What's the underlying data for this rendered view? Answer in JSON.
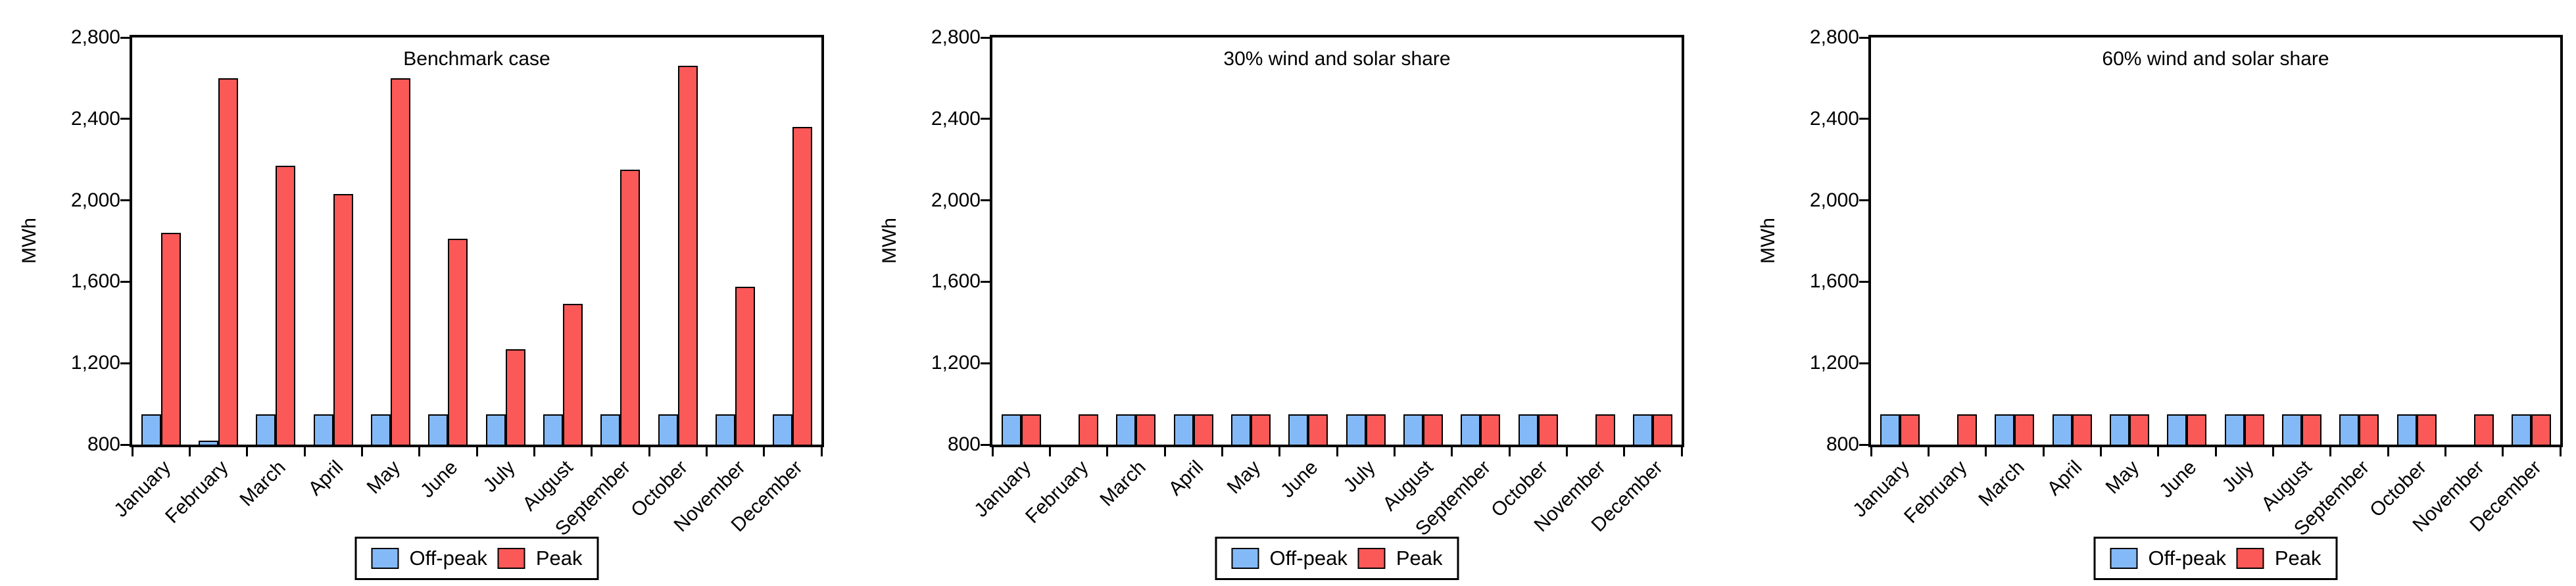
{
  "figure": {
    "ylabel": "MWh",
    "legend": {
      "off_peak_label": "Off-peak",
      "peak_label": "Peak"
    },
    "colors": {
      "off_peak": "#84B9F7",
      "peak": "#FB5858",
      "bar_outline": "#000000",
      "axis": "#000000",
      "background": "#FFFFFF"
    }
  },
  "chart_data": [
    {
      "type": "bar",
      "title": "Benchmark case",
      "ylabel": "MWh",
      "ylim": [
        800,
        2800
      ],
      "yticks": [
        800,
        1200,
        1600,
        2000,
        2400,
        2800
      ],
      "ytick_labels": [
        "800",
        "1,200",
        "1,600",
        "2,000",
        "2,400",
        "2,800"
      ],
      "grid": false,
      "legend_position": "bottom-center",
      "categories": [
        "January",
        "February",
        "March",
        "April",
        "May",
        "June",
        "July",
        "August",
        "September",
        "October",
        "November",
        "December"
      ],
      "series": [
        {
          "name": "Off-peak",
          "color": "#84B9F7",
          "values": [
            950,
            820,
            950,
            950,
            950,
            950,
            950,
            950,
            950,
            950,
            950,
            950
          ]
        },
        {
          "name": "Peak",
          "color": "#FB5858",
          "values": [
            1840,
            2600,
            2170,
            2030,
            2600,
            1810,
            1270,
            1490,
            2150,
            2660,
            1575,
            2360
          ]
        }
      ]
    },
    {
      "type": "bar",
      "title": "30% wind and solar share",
      "ylabel": "MWh",
      "ylim": [
        800,
        2800
      ],
      "yticks": [
        800,
        1200,
        1600,
        2000,
        2400,
        2800
      ],
      "ytick_labels": [
        "800",
        "1,200",
        "1,600",
        "2,000",
        "2,400",
        "2,800"
      ],
      "grid": false,
      "legend_position": "bottom-center",
      "categories": [
        "January",
        "February",
        "March",
        "April",
        "May",
        "June",
        "July",
        "August",
        "September",
        "October",
        "November",
        "December"
      ],
      "series": [
        {
          "name": "Off-peak",
          "color": "#84B9F7",
          "values": [
            950,
            null,
            950,
            950,
            950,
            950,
            950,
            950,
            950,
            950,
            null,
            950
          ]
        },
        {
          "name": "Peak",
          "color": "#FB5858",
          "values": [
            950,
            950,
            950,
            950,
            950,
            950,
            950,
            950,
            950,
            950,
            950,
            950
          ]
        }
      ]
    },
    {
      "type": "bar",
      "title": "60% wind and solar share",
      "ylabel": "MWh",
      "ylim": [
        800,
        2800
      ],
      "yticks": [
        800,
        1200,
        1600,
        2000,
        2400,
        2800
      ],
      "ytick_labels": [
        "800",
        "1,200",
        "1,600",
        "2,000",
        "2,400",
        "2,800"
      ],
      "grid": false,
      "legend_position": "bottom-center",
      "categories": [
        "January",
        "February",
        "March",
        "April",
        "May",
        "June",
        "July",
        "August",
        "September",
        "October",
        "November",
        "December"
      ],
      "series": [
        {
          "name": "Off-peak",
          "color": "#84B9F7",
          "values": [
            950,
            null,
            950,
            950,
            950,
            950,
            950,
            950,
            950,
            950,
            null,
            950
          ]
        },
        {
          "name": "Peak",
          "color": "#FB5858",
          "values": [
            950,
            950,
            950,
            950,
            950,
            950,
            950,
            950,
            950,
            950,
            950,
            950
          ]
        }
      ]
    }
  ]
}
